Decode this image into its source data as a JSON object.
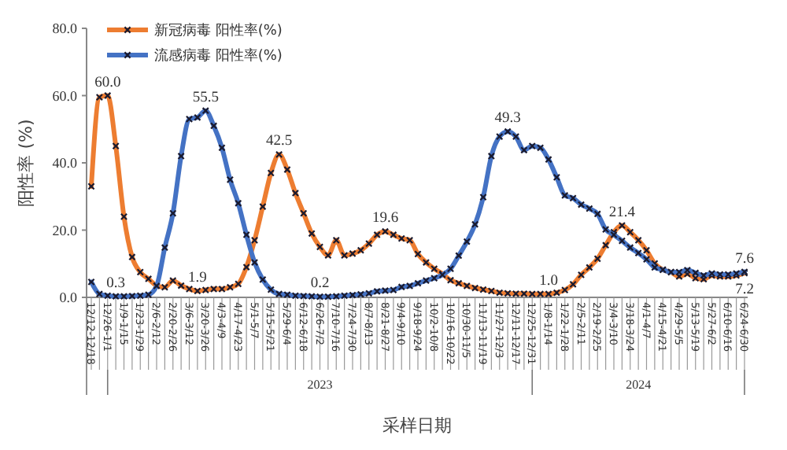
{
  "chart_data": {
    "type": "line",
    "xlabel": "采样日期",
    "ylabel": "阳性率 (%)",
    "categories": [
      "12/12-12/18",
      null,
      "12/26-1/1",
      null,
      "1/9-1/15",
      null,
      "1/23-1/29",
      null,
      "2/6-2/12",
      null,
      "2/20-2/26",
      null,
      "3/6-3/12",
      null,
      "3/20-3/26",
      null,
      "4/3-4/9",
      null,
      "4/17-4/23",
      null,
      "5/1-5/7",
      null,
      "5/15-5/21",
      null,
      "5/29-6/4",
      null,
      "6/12-6/18",
      null,
      "6/26-7/2",
      null,
      "7/10-7/16",
      null,
      "7/24-7/30",
      null,
      "8/7-8/13",
      null,
      "8/21-8/27",
      null,
      "9/4-9/10",
      null,
      "9/18-9/24",
      null,
      "10/2-10/8",
      null,
      "10/16-10/22",
      null,
      "10/30-11/5",
      null,
      "11/13-11/19",
      null,
      "11/27-12/3",
      null,
      "12/11-12/17",
      null,
      "12/25-12/31",
      null,
      "1/8-1/14",
      null,
      "1/22-1/28",
      null,
      "2/5-2/11",
      null,
      "2/19-2/25",
      null,
      "3/4-3/10",
      null,
      "3/18-3/24",
      null,
      "4/1-4/7",
      null,
      "4/15-4/21",
      null,
      "4/29-5/5",
      null,
      "5/13-5/19",
      null,
      "5/27-6/2",
      null,
      "6/10-6/16",
      null,
      "6/24-6/30"
    ],
    "series": [
      {
        "name": "新冠病毒 阳性率(%)",
        "color": "#ed7d31",
        "values": [
          33,
          59.5,
          60.0,
          45,
          24,
          12,
          7.5,
          5.5,
          3.5,
          3,
          5,
          3.5,
          2.5,
          1.9,
          2.2,
          2.5,
          2.5,
          3,
          4,
          9,
          17,
          27,
          37,
          42.5,
          38,
          31,
          25,
          19,
          15,
          12.5,
          17,
          12.5,
          13,
          14,
          16,
          18.6,
          19.6,
          18.6,
          17.5,
          17,
          12.9,
          10.4,
          8.5,
          7,
          5.1,
          4.2,
          3.4,
          2.8,
          2.3,
          1.9,
          1.4,
          1.2,
          1.1,
          1.1,
          1.0,
          1.0,
          1.0,
          1.4,
          2.2,
          3.9,
          6.7,
          8.9,
          11.5,
          15.5,
          19.4,
          21.4,
          19.4,
          17,
          14,
          10.1,
          8.2,
          7.5,
          6.2,
          7,
          5.7,
          5.4,
          6.5,
          6.2,
          6.2,
          6.5,
          7.2
        ],
        "value_labels": [
          null,
          null,
          "60.0",
          null,
          null,
          null,
          null,
          null,
          null,
          null,
          null,
          null,
          null,
          "1.9",
          null,
          null,
          null,
          null,
          null,
          null,
          null,
          null,
          null,
          "42.5",
          null,
          null,
          null,
          null,
          null,
          null,
          null,
          null,
          null,
          null,
          null,
          null,
          "19.6",
          null,
          null,
          null,
          null,
          null,
          null,
          null,
          null,
          null,
          null,
          null,
          null,
          null,
          null,
          null,
          null,
          null,
          null,
          null,
          "1.0",
          null,
          null,
          null,
          null,
          null,
          null,
          null,
          null,
          "21.4",
          null,
          null,
          null,
          null,
          null,
          null,
          null,
          null,
          null,
          null,
          null,
          null,
          null,
          null,
          "7.2"
        ]
      },
      {
        "name": "流感病毒 阳性率(%)",
        "color": "#4472c4",
        "values": [
          4.6,
          1.0,
          0.5,
          0.3,
          0.3,
          0.4,
          0.5,
          0.8,
          3.4,
          14.8,
          25,
          42,
          53,
          53.5,
          55.5,
          51,
          44.5,
          35,
          28,
          18.6,
          10.4,
          5.3,
          2.3,
          1.0,
          0.8,
          0.5,
          0.4,
          0.3,
          0.2,
          0.2,
          0.3,
          0.5,
          0.7,
          0.9,
          1.2,
          1.8,
          2.0,
          2.2,
          3.1,
          3.4,
          4.2,
          5,
          5.7,
          6.7,
          8.5,
          12.4,
          16.6,
          21.7,
          29.8,
          42,
          47.8,
          49.3,
          47.8,
          43.8,
          45,
          44.5,
          41,
          35.7,
          30.3,
          29.5,
          27.6,
          26.4,
          24.8,
          20.2,
          18.6,
          16.8,
          14.8,
          13.2,
          11.3,
          8.9,
          8.2,
          7.5,
          7.5,
          8.1,
          7.3,
          6.5,
          7.1,
          6.8,
          6.8,
          7.1,
          7.6
        ],
        "value_labels": [
          null,
          null,
          null,
          "0.3",
          null,
          null,
          null,
          null,
          null,
          null,
          null,
          null,
          null,
          null,
          "55.5",
          null,
          null,
          null,
          null,
          null,
          null,
          null,
          null,
          null,
          null,
          null,
          null,
          null,
          "0.2",
          null,
          null,
          null,
          null,
          null,
          null,
          null,
          null,
          null,
          null,
          null,
          null,
          null,
          null,
          null,
          null,
          null,
          null,
          null,
          null,
          null,
          null,
          "49.3",
          null,
          null,
          null,
          null,
          null,
          null,
          null,
          null,
          null,
          null,
          null,
          null,
          null,
          null,
          null,
          null,
          null,
          null,
          null,
          null,
          null,
          null,
          null,
          null,
          null,
          null,
          null,
          null,
          "7.6"
        ]
      }
    ],
    "ylim": [
      0,
      80
    ],
    "yticks": [
      {
        "value": 0,
        "label": "0.0"
      },
      {
        "value": 20,
        "label": "20.0"
      },
      {
        "value": 40,
        "label": "40.0"
      },
      {
        "value": 60,
        "label": "60.0"
      },
      {
        "value": 80,
        "label": "80.0"
      }
    ],
    "annotations": [
      "2023",
      "2024"
    ],
    "grid": false,
    "legend": "top left",
    "marker": "cross",
    "line_style": "solid"
  }
}
